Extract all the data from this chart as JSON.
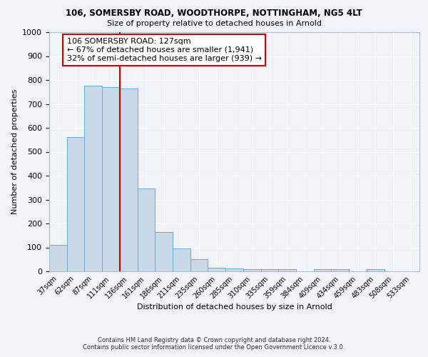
{
  "title1": "106, SOMERSBY ROAD, WOODTHORPE, NOTTINGHAM, NG5 4LT",
  "title2": "Size of property relative to detached houses in Arnold",
  "xlabel": "Distribution of detached houses by size in Arnold",
  "ylabel": "Number of detached properties",
  "categories": [
    "37sqm",
    "62sqm",
    "87sqm",
    "111sqm",
    "136sqm",
    "161sqm",
    "186sqm",
    "211sqm",
    "235sqm",
    "260sqm",
    "285sqm",
    "310sqm",
    "335sqm",
    "359sqm",
    "384sqm",
    "409sqm",
    "434sqm",
    "459sqm",
    "483sqm",
    "508sqm",
    "533sqm"
  ],
  "values": [
    110,
    560,
    775,
    770,
    765,
    345,
    163,
    96,
    52,
    15,
    12,
    10,
    8,
    8,
    0,
    10,
    8,
    0,
    10,
    0,
    0
  ],
  "bar_color": "#c9d9ea",
  "bar_edge_color": "#6aaacb",
  "red_line_x": 3.5,
  "annotation_text": "106 SOMERSBY ROAD: 127sqm\n← 67% of detached houses are smaller (1,941)\n32% of semi-detached houses are larger (939) →",
  "annotation_box_color": "#ffffff",
  "annotation_box_edge": "#cc0000",
  "ylim": [
    0,
    1000
  ],
  "yticks": [
    0,
    100,
    200,
    300,
    400,
    500,
    600,
    700,
    800,
    900,
    1000
  ],
  "footer1": "Contains HM Land Registry data © Crown copyright and database right 2024.",
  "footer2": "Contains public sector information licensed under the Open Government Licence v.3.0.",
  "background_color": "#f0f4f8",
  "grid_color": "#ffffff"
}
